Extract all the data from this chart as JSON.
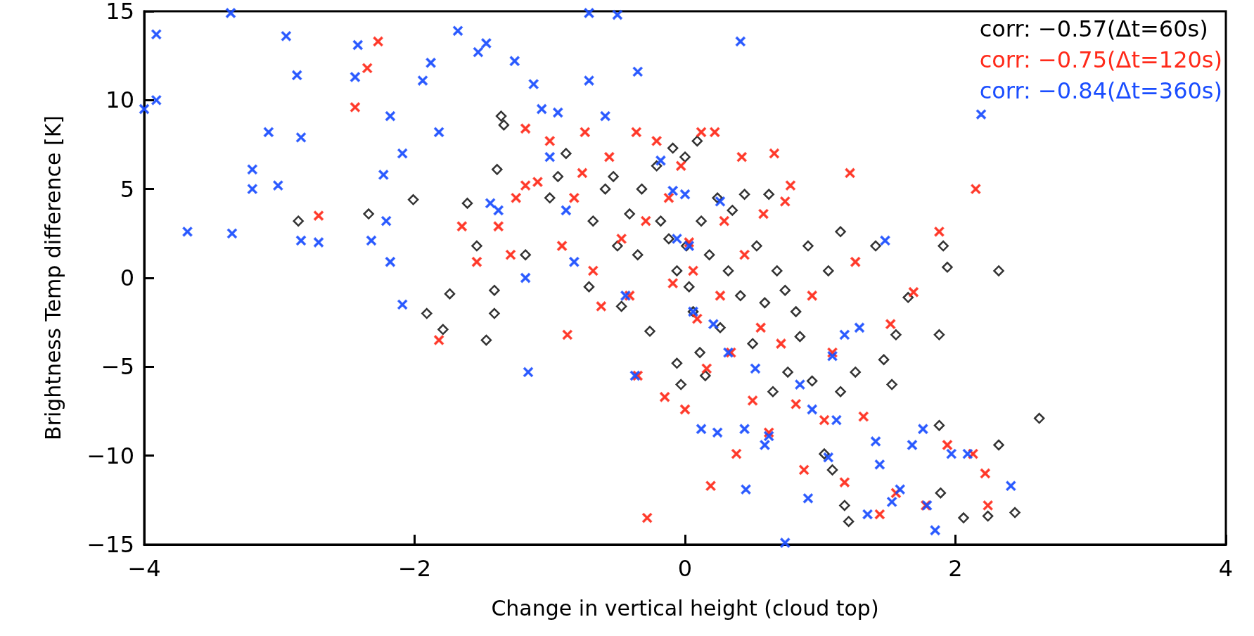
{
  "chart_data": {
    "type": "scatter",
    "xlabel": "Change in vertical height (cloud top)",
    "ylabel": "Brightness Temp difference [K]",
    "xlim": [
      -4,
      4
    ],
    "xticks": [
      -4,
      -2,
      0,
      2,
      4
    ],
    "ylim": [
      -15,
      15
    ],
    "yticks": [
      -15,
      -10,
      -5,
      0,
      5,
      10,
      15
    ],
    "grid": false,
    "legend": "top right",
    "series": [
      {
        "name": "corr: −0.57(Δt=60s)",
        "color": "#000000",
        "marker": "diamond",
        "x": [
          -2.86,
          -2.01,
          -2.34,
          -1.91,
          -1.79,
          -1.74,
          -1.61,
          -1.54,
          -1.47,
          -1.41,
          -1.41,
          -1.39,
          -1.36,
          -1.34,
          -1.18,
          -1.0,
          -0.94,
          -0.88,
          -0.71,
          -0.68,
          -0.59,
          -0.53,
          -0.5,
          -0.47,
          -0.41,
          -0.35,
          -0.32,
          -0.26,
          -0.21,
          -0.18,
          -0.12,
          -0.09,
          -0.06,
          -0.06,
          -0.03,
          0,
          0.01,
          0.03,
          0.06,
          0.09,
          0.11,
          0.12,
          0.15,
          0.18,
          0.24,
          0.26,
          0.32,
          0.35,
          0.41,
          0.44,
          0.5,
          0.53,
          0.59,
          0.62,
          0.65,
          0.68,
          0.74,
          0.76,
          0.82,
          0.85,
          0.91,
          0.94,
          1.03,
          1.06,
          1.09,
          1.15,
          1.15,
          1.18,
          1.21,
          1.26,
          1.41,
          1.47,
          1.53,
          1.56,
          1.65,
          1.88,
          1.88,
          1.89,
          1.91,
          1.94,
          2.32,
          2.32,
          2.24,
          2.44,
          2.62,
          2.06
        ],
        "values": [
          3.2,
          4.4,
          3.6,
          -2.0,
          -2.9,
          -0.9,
          4.2,
          1.8,
          -3.5,
          -2.0,
          -0.7,
          6.1,
          9.1,
          8.6,
          1.3,
          4.5,
          5.7,
          7.0,
          -0.5,
          3.2,
          5.0,
          5.7,
          1.8,
          -1.6,
          3.6,
          1.3,
          5.0,
          -3.0,
          6.3,
          3.2,
          2.2,
          7.3,
          0.4,
          -4.8,
          -6.0,
          6.8,
          1.8,
          -0.5,
          -1.9,
          7.7,
          -4.2,
          3.2,
          -5.5,
          1.3,
          4.5,
          -2.8,
          0.4,
          3.8,
          -1.0,
          4.7,
          -3.7,
          1.8,
          -1.4,
          4.7,
          -6.4,
          0.4,
          -0.7,
          -5.3,
          -1.9,
          -3.3,
          1.8,
          -5.8,
          -9.9,
          0.4,
          -10.8,
          2.6,
          -6.4,
          -12.8,
          -13.7,
          -5.3,
          1.8,
          -4.6,
          -6.0,
          -3.2,
          -1.1,
          -3.2,
          -8.3,
          -12.1,
          1.8,
          0.6,
          0.4,
          -9.4,
          -13.4,
          -13.2,
          -7.9,
          -13.5
        ]
      },
      {
        "name": "corr: −0.75(Δt=120s)",
        "color": "#ff2a1a",
        "marker": "cross",
        "x": [
          -2.71,
          -2.44,
          -2.27,
          -2.35,
          -1.82,
          -1.65,
          -1.54,
          -1.38,
          -1.29,
          -1.25,
          -1.18,
          -1.18,
          -1.09,
          -1.0,
          -0.91,
          -0.87,
          -0.82,
          -0.76,
          -0.74,
          -0.68,
          -0.62,
          -0.56,
          -0.47,
          -0.41,
          -0.36,
          -0.35,
          -0.29,
          -0.28,
          -0.21,
          -0.15,
          -0.12,
          -0.09,
          -0.03,
          0,
          0.03,
          0.06,
          0.09,
          0.12,
          0.16,
          0.19,
          0.22,
          0.26,
          0.29,
          0.34,
          0.38,
          0.42,
          0.44,
          0.5,
          0.56,
          0.58,
          0.62,
          0.66,
          0.71,
          0.74,
          0.78,
          0.82,
          0.88,
          0.94,
          1.03,
          1.09,
          1.18,
          1.22,
          1.26,
          1.32,
          1.44,
          1.52,
          1.56,
          1.69,
          1.78,
          1.88,
          1.94,
          2.13,
          2.22,
          2.15,
          2.24
        ],
        "values": [
          3.5,
          9.6,
          13.3,
          11.8,
          -3.5,
          2.9,
          0.9,
          2.9,
          1.3,
          4.5,
          5.2,
          8.4,
          5.4,
          7.7,
          1.8,
          -3.2,
          4.5,
          5.9,
          8.2,
          0.4,
          -1.6,
          6.8,
          2.2,
          -1.0,
          8.2,
          -5.5,
          3.2,
          -13.5,
          7.7,
          -6.7,
          4.5,
          -0.3,
          6.3,
          -7.4,
          2.0,
          0.4,
          -2.3,
          8.2,
          -5.1,
          -11.7,
          8.2,
          -1.0,
          3.2,
          -4.2,
          -9.9,
          6.8,
          1.3,
          -6.9,
          -2.8,
          3.6,
          -8.7,
          7.0,
          -3.7,
          4.3,
          5.2,
          -7.1,
          -10.8,
          -1.0,
          -8.0,
          -4.2,
          -11.5,
          5.9,
          0.9,
          -7.8,
          -13.3,
          -2.6,
          -12.1,
          -0.8,
          -12.8,
          2.6,
          -9.4,
          -9.9,
          -11.0,
          5.0,
          -12.8
        ]
      },
      {
        "name": "corr: −0.84(Δt=360s)",
        "color": "#1a4dff",
        "marker": "cross",
        "x": [
          -4.0,
          -3.91,
          -3.91,
          -3.68,
          -3.36,
          -3.35,
          -3.2,
          -3.2,
          -3.08,
          -3.01,
          -2.95,
          -2.87,
          -2.84,
          -2.84,
          -2.71,
          -2.44,
          -2.42,
          -2.32,
          -2.23,
          -2.21,
          -2.18,
          -2.18,
          -2.09,
          -2.09,
          -1.94,
          -1.88,
          -1.82,
          -1.68,
          -1.53,
          -1.47,
          -1.44,
          -1.38,
          -1.26,
          -1.18,
          -1.16,
          -1.12,
          -1.06,
          -1.0,
          -0.94,
          -0.88,
          -0.82,
          -0.71,
          -0.71,
          -0.59,
          -0.5,
          -0.44,
          -0.37,
          -0.35,
          -0.18,
          -0.09,
          -0.06,
          0,
          0.03,
          0.06,
          0.12,
          0.21,
          0.24,
          0.26,
          0.32,
          0.41,
          0.44,
          0.45,
          0.52,
          0.59,
          0.62,
          0.74,
          0.85,
          0.91,
          0.94,
          1.06,
          1.09,
          1.12,
          1.18,
          1.29,
          1.35,
          1.41,
          1.44,
          1.48,
          1.53,
          1.59,
          1.68,
          1.76,
          1.79,
          1.85,
          1.97,
          2.09,
          2.19,
          2.41
        ],
        "values": [
          9.5,
          13.7,
          10.0,
          2.6,
          14.9,
          2.5,
          6.1,
          5.0,
          8.2,
          5.2,
          13.6,
          11.4,
          2.1,
          7.9,
          2.0,
          11.3,
          13.1,
          2.1,
          5.8,
          3.2,
          9.1,
          0.9,
          -1.5,
          7.0,
          11.1,
          12.1,
          8.2,
          13.9,
          12.7,
          13.2,
          4.2,
          3.8,
          12.2,
          0,
          -5.3,
          10.9,
          9.5,
          6.8,
          9.3,
          3.8,
          0.9,
          14.9,
          11.1,
          9.1,
          14.8,
          -1.0,
          -5.5,
          11.6,
          6.6,
          4.9,
          2.2,
          4.7,
          1.8,
          -1.9,
          -8.5,
          -2.6,
          -8.7,
          4.3,
          -4.2,
          13.3,
          -8.5,
          -11.9,
          -5.1,
          -9.4,
          -8.9,
          -14.9,
          -6.0,
          -12.4,
          -7.4,
          -10.1,
          -4.4,
          -8.0,
          -3.2,
          -2.8,
          -13.3,
          -9.2,
          -10.5,
          2.1,
          -12.6,
          -11.9,
          -9.4,
          -8.5,
          -12.8,
          -14.2,
          -9.9,
          -9.9,
          9.2,
          -11.7
        ]
      }
    ]
  }
}
